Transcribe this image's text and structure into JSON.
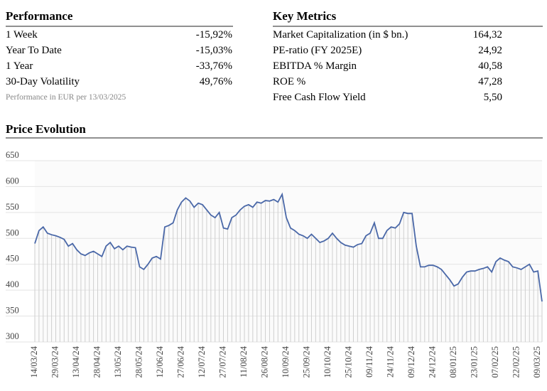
{
  "performance": {
    "title": "Performance",
    "rows": [
      [
        "1 Week",
        "-15,92%"
      ],
      [
        "Year To Date",
        "-15,03%"
      ],
      [
        "1 Year",
        "-33,76%"
      ],
      [
        "30-Day Volatility",
        "49,76%"
      ]
    ],
    "note": "Performance in EUR per 13/03/2025"
  },
  "key_metrics": {
    "title": "Key Metrics",
    "rows": [
      [
        "Market Capitalization (in $ bn.)",
        "164,32"
      ],
      [
        "PE-ratio (FY 2025E)",
        "24,92"
      ],
      [
        "EBITDA % Margin",
        "40,58"
      ],
      [
        "ROE %",
        "47,28"
      ],
      [
        "Free Cash Flow Yield",
        "5,50"
      ]
    ]
  },
  "chart_data": {
    "type": "line",
    "title": "Price Evolution",
    "color": "#4a68a8",
    "grid": true,
    "ylim": [
      300,
      650
    ],
    "yticks": [
      300,
      350,
      400,
      450,
      500,
      550,
      600,
      650
    ],
    "categories": [
      "14/03/24",
      null,
      null,
      null,
      null,
      "29/03/24",
      null,
      null,
      null,
      null,
      "13/04/24",
      null,
      null,
      null,
      null,
      "28/04/24",
      null,
      null,
      null,
      null,
      "13/05/24",
      null,
      null,
      null,
      null,
      "28/05/24",
      null,
      null,
      null,
      null,
      "12/06/24",
      null,
      null,
      null,
      null,
      "27/06/24",
      null,
      null,
      null,
      null,
      "12/07/24",
      null,
      null,
      null,
      null,
      "27/07/24",
      null,
      null,
      null,
      null,
      "11/08/24",
      null,
      null,
      null,
      null,
      "26/08/24",
      null,
      null,
      null,
      null,
      "10/09/24",
      null,
      null,
      null,
      null,
      "25/09/24",
      null,
      null,
      null,
      null,
      "10/10/24",
      null,
      null,
      null,
      null,
      "25/10/24",
      null,
      null,
      null,
      null,
      "09/11/24",
      null,
      null,
      null,
      null,
      "24/11/24",
      null,
      null,
      null,
      null,
      "09/12/24",
      null,
      null,
      null,
      null,
      "24/12/24",
      null,
      null,
      null,
      null,
      "08/01/25",
      null,
      null,
      null,
      null,
      "23/01/25",
      null,
      null,
      null,
      null,
      "07/02/25",
      null,
      null,
      null,
      null,
      "22/02/25",
      null,
      null,
      null,
      null,
      "09/03/25",
      null
    ],
    "values": [
      490,
      515,
      522,
      510,
      507,
      505,
      502,
      498,
      485,
      490,
      478,
      470,
      467,
      472,
      475,
      470,
      465,
      485,
      492,
      480,
      485,
      478,
      485,
      483,
      482,
      445,
      440,
      450,
      462,
      465,
      460,
      522,
      525,
      530,
      555,
      570,
      578,
      572,
      560,
      568,
      565,
      555,
      545,
      540,
      550,
      520,
      518,
      540,
      545,
      555,
      562,
      565,
      560,
      570,
      568,
      573,
      572,
      575,
      570,
      585,
      540,
      520,
      515,
      508,
      505,
      500,
      508,
      500,
      492,
      495,
      500,
      510,
      500,
      492,
      487,
      485,
      483,
      488,
      490,
      505,
      510,
      530,
      500,
      500,
      515,
      522,
      520,
      528,
      550,
      548,
      548,
      485,
      445,
      445,
      448,
      448,
      445,
      440,
      430,
      420,
      408,
      412,
      425,
      435,
      437,
      437,
      440,
      442,
      445,
      435,
      455,
      462,
      458,
      455,
      445,
      443,
      440,
      445,
      450,
      435,
      437,
      378
    ]
  }
}
